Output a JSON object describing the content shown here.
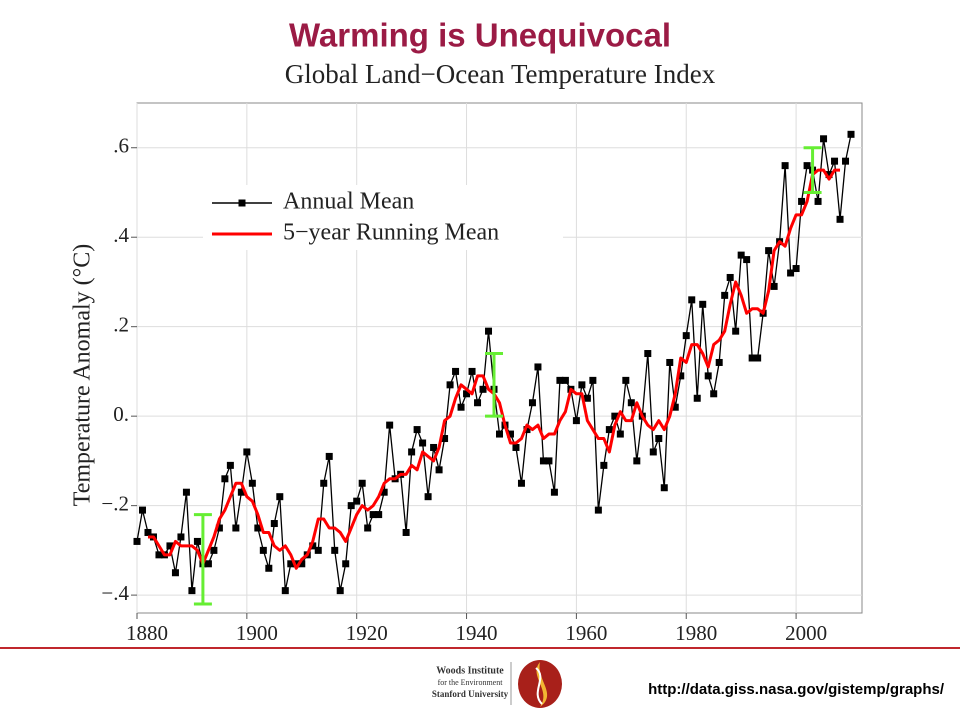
{
  "slide": {
    "title": "Warming is Unequivocal",
    "logo": [
      "Woods Institute",
      "for the Environment",
      "Stanford University"
    ],
    "url": "http://data.giss.nasa.gov/gistemp/graphs/"
  },
  "chart_data": {
    "type": "line",
    "title": "Global Land−Ocean Temperature Index",
    "ylabel": "Temperature Anomaly (°C)",
    "xlim": [
      1880,
      2012
    ],
    "ylim": [
      -0.44,
      0.7
    ],
    "xticks": [
      1880,
      1900,
      1920,
      1940,
      1960,
      1980,
      2000
    ],
    "yticks": [
      {
        "value": -0.4,
        "label": "−.4"
      },
      {
        "value": -0.2,
        "label": "−.2"
      },
      {
        "value": 0,
        "label": "0."
      },
      {
        "value": 0.2,
        "label": ".2"
      },
      {
        "value": 0.4,
        "label": ".4"
      },
      {
        "value": 0.6,
        "label": ".6"
      }
    ],
    "grid": true,
    "legend": "upper left",
    "series": [
      {
        "name": "Annual Mean",
        "color": "#000000",
        "marker": "square",
        "x": [
          1880,
          1881,
          1882,
          1883,
          1884,
          1885,
          1886,
          1887,
          1888,
          1889,
          1890,
          1891,
          1892,
          1893,
          1894,
          1895,
          1896,
          1897,
          1898,
          1899,
          1900,
          1901,
          1902,
          1903,
          1904,
          1905,
          1906,
          1907,
          1908,
          1909,
          1910,
          1911,
          1912,
          1913,
          1914,
          1915,
          1916,
          1917,
          1918,
          1919,
          1920,
          1921,
          1922,
          1923,
          1924,
          1925,
          1926,
          1927,
          1928,
          1929,
          1930,
          1931,
          1932,
          1933,
          1934,
          1935,
          1936,
          1937,
          1938,
          1939,
          1940,
          1941,
          1942,
          1943,
          1944,
          1945,
          1946,
          1947,
          1948,
          1949,
          1950,
          1951,
          1952,
          1953,
          1954,
          1955,
          1956,
          1957,
          1958,
          1959,
          1960,
          1961,
          1962,
          1963,
          1964,
          1965,
          1966,
          1967,
          1968,
          1969,
          1970,
          1971,
          1972,
          1973,
          1974,
          1975,
          1976,
          1977,
          1978,
          1979,
          1980,
          1981,
          1982,
          1983,
          1984,
          1985,
          1986,
          1987,
          1988,
          1989,
          1990,
          1991,
          1992,
          1993,
          1994,
          1995,
          1996,
          1997,
          1998,
          1999,
          2000,
          2001,
          2002,
          2003,
          2004,
          2005,
          2006,
          2007,
          2008,
          2009,
          2010
        ],
        "values": [
          -0.28,
          -0.21,
          -0.26,
          -0.27,
          -0.31,
          -0.31,
          -0.29,
          -0.35,
          -0.27,
          -0.17,
          -0.39,
          -0.28,
          -0.33,
          -0.33,
          -0.3,
          -0.25,
          -0.14,
          -0.11,
          -0.25,
          -0.17,
          -0.08,
          -0.15,
          -0.25,
          -0.3,
          -0.34,
          -0.24,
          -0.18,
          -0.39,
          -0.33,
          -0.33,
          -0.33,
          -0.31,
          -0.29,
          -0.3,
          -0.15,
          -0.09,
          -0.3,
          -0.39,
          -0.33,
          -0.2,
          -0.19,
          -0.15,
          -0.25,
          -0.22,
          -0.22,
          -0.17,
          -0.02,
          -0.14,
          -0.13,
          -0.26,
          -0.08,
          -0.03,
          -0.06,
          -0.18,
          -0.07,
          -0.12,
          -0.05,
          0.07,
          0.1,
          0.02,
          0.05,
          0.1,
          0.03,
          0.06,
          0.19,
          0.06,
          -0.04,
          -0.02,
          -0.04,
          -0.07,
          -0.15,
          -0.03,
          0.03,
          0.11,
          -0.1,
          -0.1,
          -0.17,
          0.08,
          0.08,
          0.06,
          -0.01,
          0.07,
          0.04,
          0.08,
          -0.21,
          -0.11,
          -0.03,
          0.0,
          -0.04,
          0.08,
          0.03,
          -0.1,
          0.0,
          0.14,
          -0.08,
          -0.05,
          -0.16,
          0.12,
          0.02,
          0.09,
          0.18,
          0.26,
          0.04,
          0.25,
          0.09,
          0.05,
          0.12,
          0.27,
          0.31,
          0.19,
          0.36,
          0.35,
          0.13,
          0.13,
          0.23,
          0.37,
          0.29,
          0.39,
          0.56,
          0.32,
          0.33,
          0.48,
          0.56,
          0.55,
          0.48,
          0.62,
          0.54,
          0.57,
          0.44,
          0.57,
          0.63
        ]
      },
      {
        "name": "5−year Running Mean",
        "color": "#ff0000",
        "x": [
          1882,
          1883,
          1884,
          1885,
          1886,
          1887,
          1888,
          1889,
          1890,
          1891,
          1892,
          1893,
          1894,
          1895,
          1896,
          1897,
          1898,
          1899,
          1900,
          1901,
          1902,
          1903,
          1904,
          1905,
          1906,
          1907,
          1908,
          1909,
          1910,
          1911,
          1912,
          1913,
          1914,
          1915,
          1916,
          1917,
          1918,
          1919,
          1920,
          1921,
          1922,
          1923,
          1924,
          1925,
          1926,
          1927,
          1928,
          1929,
          1930,
          1931,
          1932,
          1933,
          1934,
          1935,
          1936,
          1937,
          1938,
          1939,
          1940,
          1941,
          1942,
          1943,
          1944,
          1945,
          1946,
          1947,
          1948,
          1949,
          1950,
          1951,
          1952,
          1953,
          1954,
          1955,
          1956,
          1957,
          1958,
          1959,
          1960,
          1961,
          1962,
          1963,
          1964,
          1965,
          1966,
          1967,
          1968,
          1969,
          1970,
          1971,
          1972,
          1973,
          1974,
          1975,
          1976,
          1977,
          1978,
          1979,
          1980,
          1981,
          1982,
          1983,
          1984,
          1985,
          1986,
          1987,
          1988,
          1989,
          1990,
          1991,
          1992,
          1993,
          1994,
          1995,
          1996,
          1997,
          1998,
          1999,
          2000,
          2001,
          2002,
          2003,
          2004,
          2005,
          2006,
          2007,
          2008
        ],
        "values": [
          -0.27,
          -0.27,
          -0.29,
          -0.31,
          -0.31,
          -0.28,
          -0.29,
          -0.29,
          -0.29,
          -0.3,
          -0.33,
          -0.3,
          -0.27,
          -0.23,
          -0.21,
          -0.18,
          -0.15,
          -0.15,
          -0.18,
          -0.19,
          -0.22,
          -0.26,
          -0.26,
          -0.29,
          -0.3,
          -0.29,
          -0.31,
          -0.34,
          -0.32,
          -0.31,
          -0.28,
          -0.23,
          -0.23,
          -0.25,
          -0.25,
          -0.26,
          -0.28,
          -0.25,
          -0.22,
          -0.2,
          -0.21,
          -0.2,
          -0.18,
          -0.15,
          -0.14,
          -0.14,
          -0.13,
          -0.13,
          -0.11,
          -0.12,
          -0.08,
          -0.09,
          -0.1,
          -0.07,
          -0.01,
          0.0,
          0.04,
          0.07,
          0.06,
          0.05,
          0.09,
          0.09,
          0.06,
          0.05,
          0.03,
          -0.02,
          -0.06,
          -0.06,
          -0.05,
          -0.02,
          -0.03,
          -0.02,
          -0.05,
          -0.04,
          -0.04,
          -0.01,
          0.01,
          0.06,
          0.05,
          0.05,
          -0.01,
          -0.03,
          -0.05,
          -0.05,
          -0.08,
          -0.02,
          0.01,
          -0.01,
          -0.01,
          0.03,
          0.0,
          -0.02,
          -0.03,
          -0.01,
          -0.03,
          0.0,
          0.05,
          0.13,
          0.12,
          0.16,
          0.16,
          0.14,
          0.11,
          0.16,
          0.17,
          0.19,
          0.25,
          0.3,
          0.27,
          0.23,
          0.24,
          0.24,
          0.23,
          0.28,
          0.37,
          0.39,
          0.38,
          0.42,
          0.45,
          0.45,
          0.48,
          0.54,
          0.55,
          0.55,
          0.53,
          0.55,
          0.55
        ]
      }
    ],
    "error_bars": {
      "color": "#66ee33",
      "x": [
        1892,
        1945,
        2003
      ],
      "values": [
        -0.32,
        0.07,
        0.55
      ],
      "errors": [
        0.1,
        0.07,
        0.05
      ]
    }
  }
}
